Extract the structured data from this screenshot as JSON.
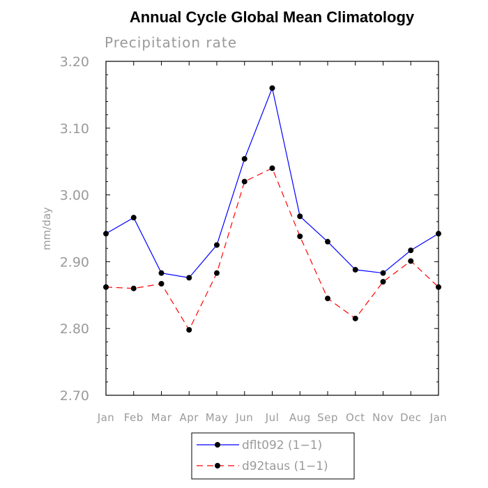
{
  "chart_data": {
    "type": "line",
    "title": "Annual Cycle Global Mean Climatology",
    "subtitle": "Precipitation rate",
    "xlabel": "",
    "ylabel": "mm/day",
    "categories": [
      "Jan",
      "Feb",
      "Mar",
      "Apr",
      "May",
      "Jun",
      "Jul",
      "Aug",
      "Sep",
      "Oct",
      "Nov",
      "Dec",
      "Jan"
    ],
    "ylim": [
      2.7,
      3.2
    ],
    "yticks": [
      "3.20",
      "3.10",
      "3.00",
      "2.90",
      "2.80",
      "2.70"
    ],
    "ytick_values": [
      3.2,
      3.1,
      3.0,
      2.9,
      2.8,
      2.7
    ],
    "series": [
      {
        "name": "dflt092 (1−1)",
        "color": "#0000ff",
        "dash": "solid",
        "values": [
          2.942,
          2.966,
          2.883,
          2.876,
          2.925,
          3.054,
          3.16,
          2.968,
          2.93,
          2.888,
          2.883,
          2.917,
          2.942
        ]
      },
      {
        "name": "d92taus (1−1)",
        "color": "#ff0000",
        "dash": "dashed",
        "values": [
          2.862,
          2.86,
          2.867,
          2.798,
          2.883,
          3.02,
          3.04,
          2.938,
          2.845,
          2.815,
          2.87,
          2.901,
          2.862
        ]
      }
    ],
    "grid": false,
    "legend_position": "bottom-center"
  }
}
